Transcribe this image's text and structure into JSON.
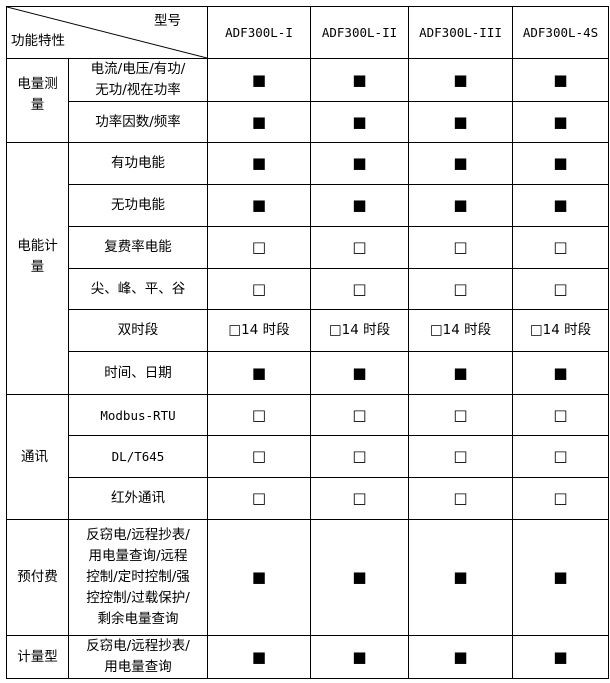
{
  "header": {
    "model_label": "型号",
    "feature_label": "功能特性",
    "models": [
      "ADF300L-I",
      "ADF300L-II",
      "ADF300L-III",
      "ADF300L-4S"
    ]
  },
  "symbols": {
    "yes": "■",
    "no": "□"
  },
  "groups": [
    {
      "name": "电量测量",
      "rows": [
        {
          "feature": "电流/电压/有功/无功/视在功率",
          "values": [
            "■",
            "■",
            "■",
            "■"
          ]
        },
        {
          "feature": "功率因数/频率",
          "values": [
            "■",
            "■",
            "■",
            "■"
          ]
        }
      ]
    },
    {
      "name": "电能计量",
      "rows": [
        {
          "feature": "有功电能",
          "values": [
            "■",
            "■",
            "■",
            "■"
          ]
        },
        {
          "feature": "无功电能",
          "values": [
            "■",
            "■",
            "■",
            "■"
          ]
        },
        {
          "feature": "复费率电能",
          "values": [
            "□",
            "□",
            "□",
            "□"
          ]
        },
        {
          "feature": "尖、峰、平、谷",
          "values": [
            "□",
            "□",
            "□",
            "□"
          ]
        },
        {
          "feature": "双时段",
          "values": [
            "□14 时段",
            "□14 时段",
            "□14 时段",
            "□14 时段"
          ]
        },
        {
          "feature": "时间、日期",
          "values": [
            "■",
            "■",
            "■",
            "■"
          ]
        }
      ]
    },
    {
      "name": "通讯",
      "rows": [
        {
          "feature": "Modbus-RTU",
          "values": [
            "□",
            "□",
            "□",
            "□"
          ]
        },
        {
          "feature": "DL/T645",
          "values": [
            "□",
            "□",
            "□",
            "□"
          ]
        },
        {
          "feature": "红外通讯",
          "values": [
            "□",
            "□",
            "□",
            "□"
          ]
        }
      ]
    },
    {
      "name": "预付费",
      "rows": [
        {
          "feature": "反窃电/远程抄表/用电量查询/远程控制/定时控制/强控控制/过载保护/剩余电量查询",
          "values": [
            "■",
            "■",
            "■",
            "■"
          ]
        }
      ]
    },
    {
      "name": "计量型",
      "rows": [
        {
          "feature": "反窃电/远程抄表/用电量查询",
          "values": [
            "■",
            "■",
            "■",
            "■"
          ]
        }
      ]
    }
  ]
}
